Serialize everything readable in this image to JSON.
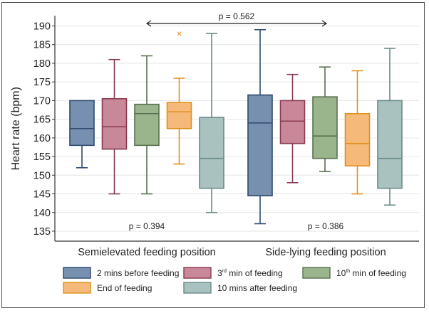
{
  "chart_data": {
    "type": "box",
    "ylabel": "Heart rate (bpm)",
    "ylim": [
      133,
      192
    ],
    "yticks": [
      135,
      140,
      145,
      150,
      155,
      160,
      165,
      170,
      175,
      180,
      185,
      190
    ],
    "grid": true,
    "legend_position": "bottom",
    "groups": [
      "Semielevated feeding position",
      "Side-lying feeding position"
    ],
    "series": [
      {
        "name": "2 mins before feeding",
        "name_sup": "",
        "color": "#7890b0",
        "edge": "#2e4a70",
        "boxes": [
          {
            "min": 152,
            "q1": 158,
            "median": 162.5,
            "q3": 170,
            "max": 170
          },
          {
            "min": 137,
            "q1": 144.5,
            "median": 164,
            "q3": 171.5,
            "max": 189
          }
        ]
      },
      {
        "name": "3",
        "name_sup": "rd",
        "name_rest": " min of feeding",
        "color": "#c8889a",
        "edge": "#8a3a50",
        "boxes": [
          {
            "min": 145,
            "q1": 157,
            "median": 163,
            "q3": 170.5,
            "max": 181
          },
          {
            "min": 148,
            "q1": 158.5,
            "median": 164.5,
            "q3": 170,
            "max": 177
          }
        ]
      },
      {
        "name": "10",
        "name_sup": "th",
        "name_rest": " min of feeding",
        "color": "#9ab48c",
        "edge": "#5a7050",
        "boxes": [
          {
            "min": 145,
            "q1": 158,
            "median": 166.5,
            "q3": 169,
            "max": 182
          },
          {
            "min": 151,
            "q1": 154.5,
            "median": 160.5,
            "q3": 171,
            "max": 179
          }
        ]
      },
      {
        "name": "End of feeding",
        "name_sup": "",
        "color": "#f5b97a",
        "edge": "#e0901e",
        "boxes": [
          {
            "min": 153,
            "q1": 162.5,
            "median": 167,
            "q3": 169.5,
            "max": 176,
            "outliers": [
              188
            ]
          },
          {
            "min": 145,
            "q1": 152.5,
            "median": 158.5,
            "q3": 166.5,
            "max": 178
          }
        ]
      },
      {
        "name": "10 mins after feeding",
        "name_sup": "",
        "color": "#a9c2c0",
        "edge": "#6a8a88",
        "boxes": [
          {
            "min": 140,
            "q1": 146.5,
            "median": 154.5,
            "q3": 165.5,
            "max": 188
          },
          {
            "min": 142,
            "q1": 146.5,
            "median": 154.5,
            "q3": 170,
            "max": 184
          }
        ]
      }
    ],
    "annotations": {
      "between_groups": "p = 0.562",
      "group_p": [
        "p = 0.394",
        "p = 0.386"
      ]
    }
  }
}
